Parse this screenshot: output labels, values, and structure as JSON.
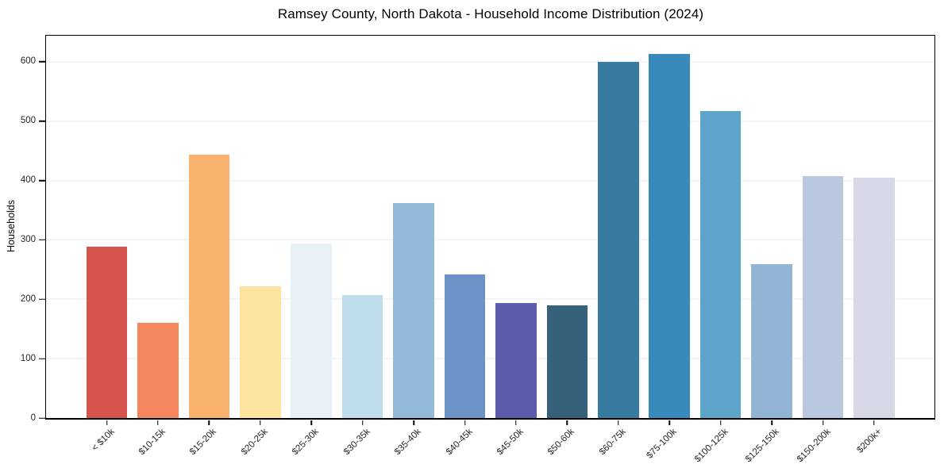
{
  "chart_data": {
    "type": "bar",
    "title": "Ramsey County, North Dakota - Household Income Distribution (2024)",
    "xlabel": "",
    "ylabel": "Households",
    "categories": [
      "< $10k",
      "$10-15k",
      "$15-20k",
      "$20-25k",
      "$25-30k",
      "$30-35k",
      "$35-40k",
      "$40-45k",
      "$45-50k",
      "$50-60k",
      "$60-75k",
      "$75-100k",
      "$100-125k",
      "$125-150k",
      "$150-200k",
      "$200k+"
    ],
    "values": [
      288,
      160,
      444,
      222,
      294,
      207,
      362,
      242,
      194,
      190,
      600,
      613,
      517,
      259,
      407,
      405
    ],
    "bar_colors": [
      "#d5544e",
      "#f5875f",
      "#fab36f",
      "#fde49e",
      "#e7f1f6",
      "#bedcea",
      "#91bbd8",
      "#6c93c6",
      "#5d5bab",
      "#35617a",
      "#377ba0",
      "#398abc",
      "#5ca4ca",
      "#92b5d6",
      "#b9c8de",
      "#d7d8e6"
    ],
    "ylim": [
      0,
      644
    ],
    "yticks": [
      0,
      100,
      200,
      300,
      400,
      500,
      600
    ],
    "grid": "horizontal-only",
    "legend": "none",
    "plot_background": "#ffffff",
    "gridline_color": "#e9e9e9"
  }
}
